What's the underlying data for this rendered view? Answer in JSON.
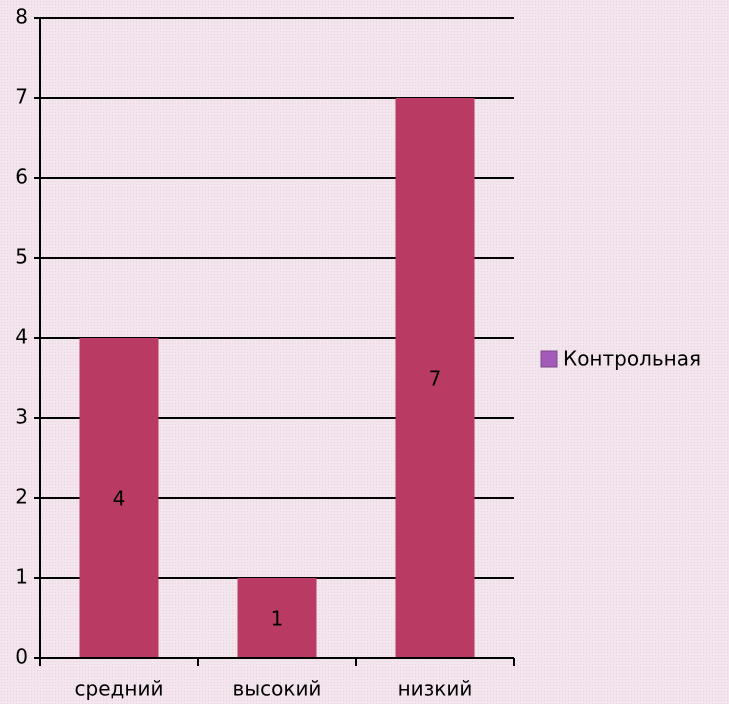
{
  "chart_data": {
    "type": "bar",
    "categories": [
      "средний",
      "высокий",
      "низкий"
    ],
    "series": [
      {
        "name": "Контрольная",
        "color": "#b93b64",
        "values": [
          4,
          1,
          7
        ]
      }
    ],
    "legend_marker_color": "#a35ab8",
    "legend": "right",
    "ylim": [
      0,
      8
    ],
    "yticks": [
      0,
      1,
      2,
      3,
      4,
      5,
      6,
      7,
      8
    ],
    "grid": true
  }
}
